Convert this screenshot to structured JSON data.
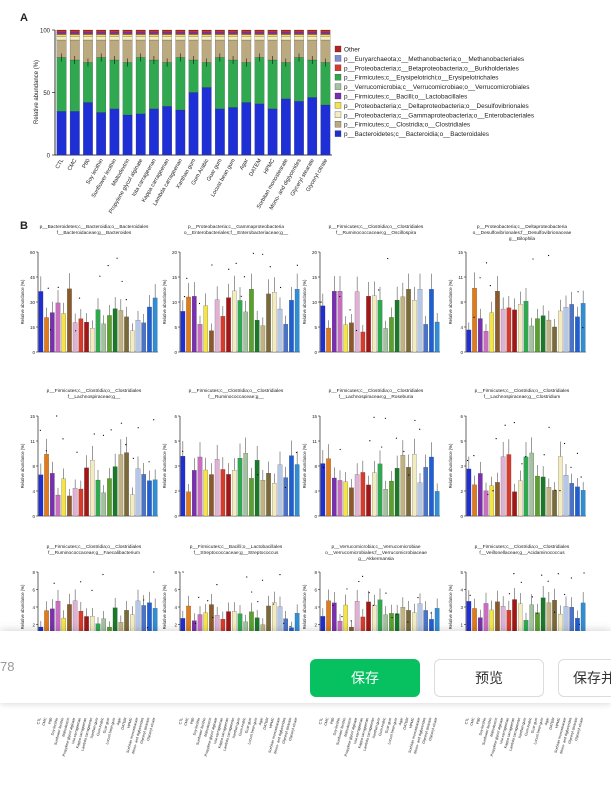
{
  "figure": {
    "panel_a_letter": "A",
    "panel_b_letter": "B",
    "panel_a": {
      "ylabel": "Relative abundance (%)",
      "yticks": [
        "0",
        "50",
        "100"
      ],
      "groups": [
        "CTL",
        "CMC",
        "P80",
        "Soy lecithin",
        "Sunflower lecithin",
        "Maltodextrin",
        "Propylene glycol alginate",
        "Iota carrageenan",
        "Kappa carrageenan",
        "Lambda carrageenan",
        "Xanthan gum",
        "Gum Arabic",
        "Guar gum",
        "Locust bean gum",
        "Agar",
        "DATEM",
        "HPMC",
        "Sorbitan monostearate",
        "Mono- and diglycerides",
        "Glyceryl stearate",
        "Glyceryl citrate"
      ],
      "legend": [
        {
          "label": "Other",
          "color": "#b22222"
        },
        {
          "label": "p__Euryarchaeota;c__Methanobacteria;o__Methanobacteriales",
          "color": "#7b8fd6"
        },
        {
          "label": "p__Proteobacteria;c__Betaproteobacteria;o__Burkholderiales",
          "color": "#d93a2b"
        },
        {
          "label": "p__Firmicutes;c__Erysipelotrichi;o__Erysipelotrichales",
          "color": "#2fa84f"
        },
        {
          "label": "p__Verrucomicrobia;c__Verrucomicrobiae;o__Verrucomicrobiales",
          "color": "#a3c3a0"
        },
        {
          "label": "p__Firmicutes;c__Bacilli;o__Lactobacillales",
          "color": "#7a2fb0"
        },
        {
          "label": "p__Proteobacteria;c__Deltaproteobacteria;o__Desulfovibrionales",
          "color": "#f5e34b"
        },
        {
          "label": "p__Proteobacteria;c__Gammaproteobacteria;o__Enterobacteriales",
          "color": "#f3ecc0"
        },
        {
          "label": "p__Firmicutes;c__Clostridia;o__Clostridiales",
          "color": "#bba980"
        },
        {
          "label": "p__Bacteroidetes;c__Bacteroidia;o__Bacteroidales",
          "color": "#1f2fd6"
        }
      ],
      "bacteroidales": [
        35,
        35,
        42,
        34,
        37,
        32,
        33,
        37,
        39,
        36,
        50,
        54,
        37,
        38,
        42,
        41,
        37,
        45,
        43,
        46,
        40
      ]
    },
    "panel_b_titles": [
      "p__Bacteroidetes;c__Bacteroidia;o__Bacteroidales; f__Bacteroidaceae;g__Bacteroides",
      "p__Proteobacteria;c__Gammaproteobacteria; o__Enterobacteriales;f__Enterobacteriaceae;g__",
      "p__Firmicutes;c__Clostridia;o__Clostridiales; f__Ruminococcaceae;g__Oscillospira",
      "p__Proteobacteria;c__Deltaproteobacteria; o__Desulfovibrionales;f__Desulfovibrionaceae; g__Bilophila",
      "p__Firmicutes;c__Clostridia;o__Clostridiales; f__Lachnospiraceae;g__",
      "p__Firmicutes;c__Clostridia;o__Clostridiales; f__Ruminococcaceae;g__",
      "p__Firmicutes;c__Clostridia;o__Clostridiales; f__Lachnospiraceae;g__Roseburia",
      "p__Firmicutes;c__Clostridia;o__Clostridiales; f__Lachnospiraceae;g__Clostridium",
      "p__Firmicutes;c__Clostridia;o__Clostridiales; f__Ruminococcaceae;g__Faecalibacterium",
      "p__Firmicutes;c__Bacilli;o__Lactobacillales; f__Streptococcaceae;g__Streptococcus",
      "p__Verrucomicrobia;c__Verrucomicrobiae; o__Verrucomicrobiales;f__Verrucomicrobiaceae; g__Akkermansia",
      "p__Firmicutes;c__Clostridia;o__Clostridiales; f__Veillonellaceae;g__Acidaminococcus"
    ],
    "panel_b_ylabel": "Relative abundance (%)",
    "panel_b_ymax": [
      60,
      20,
      20,
      15,
      15,
      6,
      15,
      6,
      8,
      8,
      8,
      5
    ]
  },
  "toolbar": {
    "page_number": "78",
    "save_label": "保存",
    "preview_label": "预览",
    "save_send_label": "保存并"
  }
}
